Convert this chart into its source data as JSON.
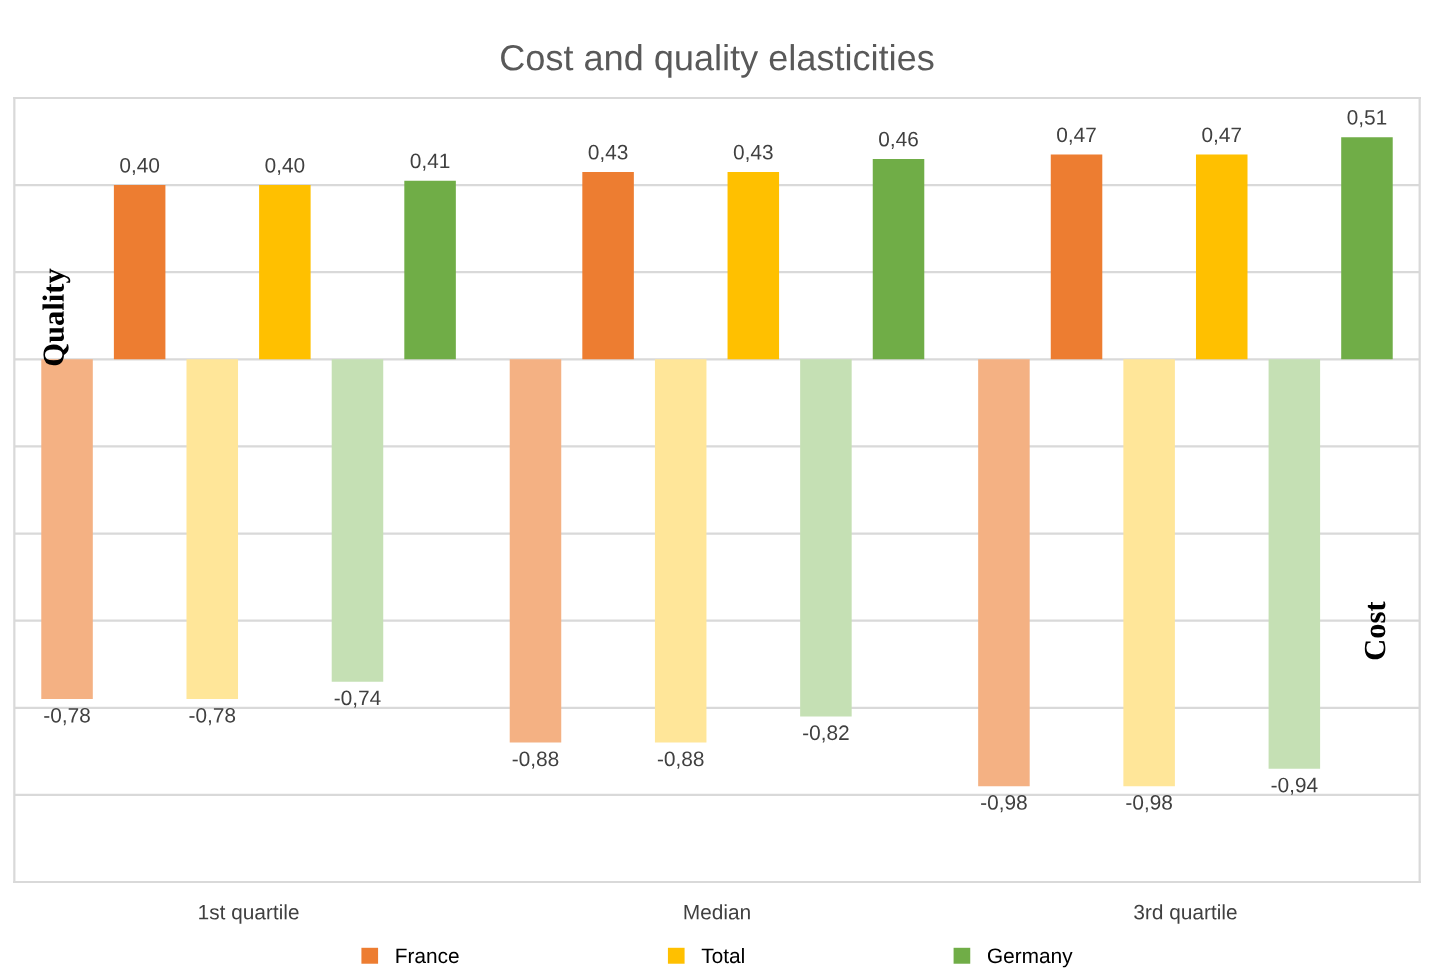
{
  "chart_data": {
    "type": "bar",
    "title": "Cost and quality elasticities",
    "categories": [
      "1st quartile",
      "Median",
      "3rd quartile"
    ],
    "series": [
      {
        "color": "#f4b183",
        "values": [
          -0.78,
          -0.88,
          -0.98
        ],
        "value_labels": [
          "-0,78",
          "-0,88",
          "-0,98"
        ]
      },
      {
        "name": "France",
        "color": "#ed7d31",
        "values": [
          0.4,
          0.43,
          0.47
        ],
        "value_labels": [
          "0,40",
          "0,43",
          "0,47"
        ]
      },
      {
        "color": "#ffe699",
        "values": [
          -0.78,
          -0.88,
          -0.98
        ],
        "value_labels": [
          "-0,78",
          "-0,88",
          "-0,98"
        ]
      },
      {
        "name": "Total",
        "color": "#ffc000",
        "values": [
          0.4,
          0.43,
          0.47
        ],
        "value_labels": [
          "0,40",
          "0,43",
          "0,47"
        ]
      },
      {
        "color": "#c5e0b4",
        "values": [
          -0.74,
          -0.82,
          -0.94
        ],
        "value_labels": [
          "-0,74",
          "-0,82",
          "-0,94"
        ]
      },
      {
        "name": "Germany",
        "color": "#70ad47",
        "values": [
          0.41,
          0.46,
          0.51
        ],
        "value_labels": [
          "0,41",
          "0,46",
          "0,51"
        ]
      }
    ],
    "ylim": [
      -1.2,
      0.6
    ],
    "yticks": [
      {
        "value": -1.2,
        "label": null
      },
      {
        "value": -1.0,
        "label": null
      },
      {
        "value": -0.8,
        "label": null
      },
      {
        "value": -0.6,
        "label": null
      },
      {
        "value": -0.4,
        "label": null
      },
      {
        "value": -0.2,
        "label": null
      },
      {
        "value": 0,
        "label": null
      },
      {
        "value": 0.2,
        "label": null
      },
      {
        "value": 0.4,
        "label": null
      },
      {
        "value": 0.6,
        "label": null
      }
    ],
    "tick_labels": "x",
    "grid": "y",
    "legend": "bottom",
    "annotations": [
      "Quality",
      "Cost"
    ]
  }
}
